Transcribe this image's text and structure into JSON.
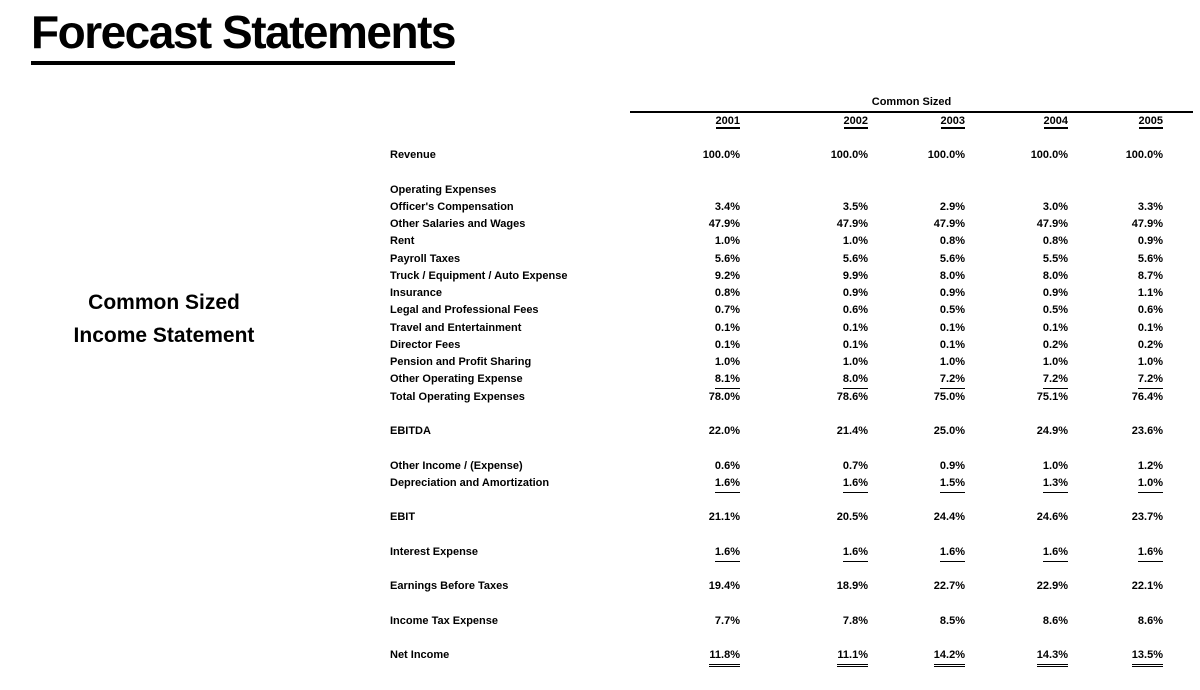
{
  "slide": {
    "title": "Forecast Statements",
    "side_label_line1": "Common Sized",
    "side_label_line2": "Income Statement"
  },
  "table": {
    "group_header": "Common Sized",
    "years": [
      "2001",
      "2002",
      "2003",
      "2004",
      "2005"
    ],
    "rows": [
      {
        "label": "Revenue",
        "values": [
          "100.0%",
          "100.0%",
          "100.0%",
          "100.0%",
          "100.0%"
        ],
        "underline": "none",
        "spacer_after": true
      },
      {
        "label": "Operating Expenses",
        "values": null,
        "underline": "none",
        "spacer_after": false
      },
      {
        "label": "Officer's Compensation",
        "values": [
          "3.4%",
          "3.5%",
          "2.9%",
          "3.0%",
          "3.3%"
        ],
        "underline": "none",
        "spacer_after": false
      },
      {
        "label": "Other Salaries and Wages",
        "values": [
          "47.9%",
          "47.9%",
          "47.9%",
          "47.9%",
          "47.9%"
        ],
        "underline": "none",
        "spacer_after": false
      },
      {
        "label": "Rent",
        "values": [
          "1.0%",
          "1.0%",
          "0.8%",
          "0.8%",
          "0.9%"
        ],
        "underline": "none",
        "spacer_after": false
      },
      {
        "label": "Payroll Taxes",
        "values": [
          "5.6%",
          "5.6%",
          "5.6%",
          "5.5%",
          "5.6%"
        ],
        "underline": "none",
        "spacer_after": false
      },
      {
        "label": "Truck / Equipment / Auto Expense",
        "values": [
          "9.2%",
          "9.9%",
          "8.0%",
          "8.0%",
          "8.7%"
        ],
        "underline": "none",
        "spacer_after": false
      },
      {
        "label": "Insurance",
        "values": [
          "0.8%",
          "0.9%",
          "0.9%",
          "0.9%",
          "1.1%"
        ],
        "underline": "none",
        "spacer_after": false
      },
      {
        "label": "Legal and Professional Fees",
        "values": [
          "0.7%",
          "0.6%",
          "0.5%",
          "0.5%",
          "0.6%"
        ],
        "underline": "none",
        "spacer_after": false
      },
      {
        "label": "Travel and Entertainment",
        "values": [
          "0.1%",
          "0.1%",
          "0.1%",
          "0.1%",
          "0.1%"
        ],
        "underline": "none",
        "spacer_after": false
      },
      {
        "label": "Director Fees",
        "values": [
          "0.1%",
          "0.1%",
          "0.1%",
          "0.2%",
          "0.2%"
        ],
        "underline": "none",
        "spacer_after": false
      },
      {
        "label": "Pension and Profit Sharing",
        "values": [
          "1.0%",
          "1.0%",
          "1.0%",
          "1.0%",
          "1.0%"
        ],
        "underline": "none",
        "spacer_after": false
      },
      {
        "label": "Other Operating Expense",
        "values": [
          "8.1%",
          "8.0%",
          "7.2%",
          "7.2%",
          "7.2%"
        ],
        "underline": "single",
        "spacer_after": false
      },
      {
        "label": "Total Operating Expenses",
        "values": [
          "78.0%",
          "78.6%",
          "75.0%",
          "75.1%",
          "76.4%"
        ],
        "underline": "none",
        "spacer_after": true
      },
      {
        "label": "EBITDA",
        "values": [
          "22.0%",
          "21.4%",
          "25.0%",
          "24.9%",
          "23.6%"
        ],
        "underline": "none",
        "spacer_after": true
      },
      {
        "label": "Other Income / (Expense)",
        "values": [
          "0.6%",
          "0.7%",
          "0.9%",
          "1.0%",
          "1.2%"
        ],
        "underline": "none",
        "spacer_after": false
      },
      {
        "label": "Depreciation and Amortization",
        "values": [
          "1.6%",
          "1.6%",
          "1.5%",
          "1.3%",
          "1.0%"
        ],
        "underline": "single",
        "spacer_after": true
      },
      {
        "label": "EBIT",
        "values": [
          "21.1%",
          "20.5%",
          "24.4%",
          "24.6%",
          "23.7%"
        ],
        "underline": "none",
        "spacer_after": true
      },
      {
        "label": "Interest Expense",
        "values": [
          "1.6%",
          "1.6%",
          "1.6%",
          "1.6%",
          "1.6%"
        ],
        "underline": "single",
        "spacer_after": true
      },
      {
        "label": "Earnings Before Taxes",
        "values": [
          "19.4%",
          "18.9%",
          "22.7%",
          "22.9%",
          "22.1%"
        ],
        "underline": "none",
        "spacer_after": true
      },
      {
        "label": "Income Tax Expense",
        "values": [
          "7.7%",
          "7.8%",
          "8.5%",
          "8.6%",
          "8.6%"
        ],
        "underline": "none",
        "spacer_after": true
      },
      {
        "label": "Net Income",
        "values": [
          "11.8%",
          "11.1%",
          "14.2%",
          "14.3%",
          "13.5%"
        ],
        "underline": "double",
        "spacer_after": false
      }
    ]
  }
}
